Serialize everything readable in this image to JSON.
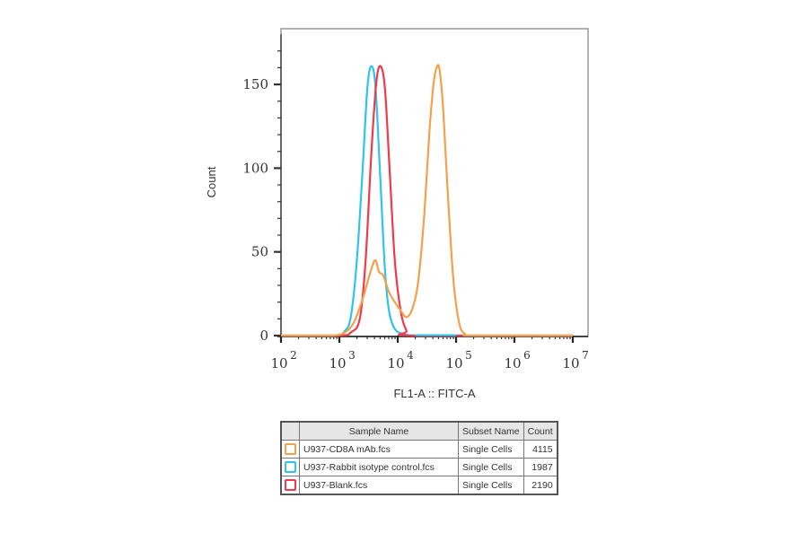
{
  "chart_data": {
    "type": "line",
    "title": "",
    "xlabel": "FL1-A :: FITC-A",
    "ylabel": "Count",
    "x_scale": "log",
    "xlim": [
      100,
      10000000
    ],
    "ylim": [
      0,
      180
    ],
    "x_tick_labels": [
      {
        "base": "10",
        "exp": "2"
      },
      {
        "base": "10",
        "exp": "3"
      },
      {
        "base": "10",
        "exp": "4"
      },
      {
        "base": "10",
        "exp": "5"
      },
      {
        "base": "10",
        "exp": "6"
      },
      {
        "base": "10",
        "exp": "7"
      }
    ],
    "y_ticks": [
      0,
      50,
      100,
      150
    ],
    "grid": false,
    "legend_position": "bottom-table",
    "series": [
      {
        "name": "U937-CD8A mAb.fcs",
        "color": "#f5a04a",
        "log10_x": [
          2.0,
          2.5,
          2.9,
          3.1,
          3.25,
          3.4,
          3.55,
          3.62,
          3.68,
          3.75,
          3.85,
          3.95,
          4.05,
          4.15,
          4.25,
          4.35,
          4.45,
          4.55,
          4.62,
          4.68,
          4.72,
          4.78,
          4.85,
          4.95,
          5.05,
          5.15,
          5.3,
          7.0
        ],
        "values": [
          0,
          0,
          0,
          2,
          8,
          22,
          40,
          45,
          38,
          36,
          26,
          20,
          15,
          11,
          16,
          32,
          70,
          125,
          152,
          161,
          158,
          135,
          90,
          35,
          8,
          1,
          0,
          0
        ]
      },
      {
        "name": "U937-Rabbit isotype control.fcs",
        "color": "#2ec4ee",
        "log10_x": [
          2.0,
          2.9,
          3.1,
          3.2,
          3.3,
          3.4,
          3.48,
          3.55,
          3.62,
          3.7,
          3.78,
          3.85,
          3.95,
          4.1,
          4.3,
          4.9,
          7.0
        ],
        "values": [
          0,
          0,
          3,
          12,
          45,
          100,
          148,
          161,
          148,
          95,
          40,
          15,
          4,
          1,
          0,
          0,
          0
        ],
        "note": "isotype trace extends near-baseline up to ~1e5"
      },
      {
        "name": "U937-Blank.fcs",
        "color": "#ee3a4a",
        "log10_x": [
          2.0,
          3.0,
          3.2,
          3.35,
          3.45,
          3.55,
          3.63,
          3.7,
          3.78,
          3.86,
          3.95,
          4.05,
          4.15,
          4.25,
          7.0
        ],
        "values": [
          0,
          0,
          2,
          10,
          45,
          110,
          150,
          161,
          148,
          100,
          45,
          15,
          3,
          0,
          0
        ]
      }
    ]
  },
  "legend_table": {
    "headers": [
      "",
      "Sample Name",
      "Subset Name",
      "Count"
    ],
    "rows": [
      {
        "color": "#f5a04a",
        "sample": "U937-CD8A mAb.fcs",
        "subset": "Single Cells",
        "count": "4115"
      },
      {
        "color": "#2ec4ee",
        "sample": "U937-Rabbit isotype control.fcs",
        "subset": "Single Cells",
        "count": "1987"
      },
      {
        "color": "#ee3a4a",
        "sample": "U937-Blank.fcs",
        "subset": "Single Cells",
        "count": "2190"
      }
    ]
  }
}
